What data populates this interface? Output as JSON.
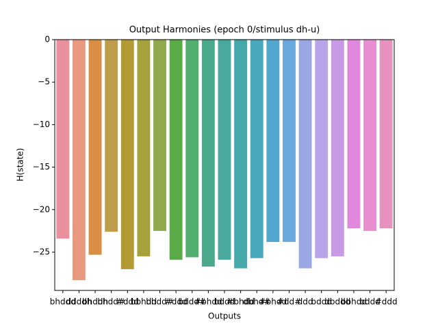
{
  "chart_data": {
    "type": "bar",
    "title": "Output Harmonies (epoch 0/stimulus dh-u)",
    "xlabel": "Outputs",
    "ylabel": "H(state)",
    "categories": [
      "bhddd",
      "ddddh",
      "bhddh",
      "bhdd#",
      "#ddd",
      "bbhdd",
      "bhdd#",
      "#ddd",
      "bddd#",
      "#bhdd",
      "bddd",
      "#bhdd",
      "dbhd#",
      "#bhdd",
      "#dd#",
      "ddd",
      "bddd",
      "dbddd",
      "bbhdd",
      "bddd",
      "#ddd"
    ],
    "values": [
      -23.4,
      -28.3,
      -25.3,
      -22.6,
      -27.0,
      -25.5,
      -22.5,
      -25.9,
      -25.6,
      -26.7,
      -25.9,
      -26.9,
      -25.7,
      -23.8,
      -23.8,
      -26.9,
      -25.7,
      -25.5,
      -22.2,
      -22.5,
      -22.2
    ],
    "colors": [
      "#e8919c",
      "#e99a7e",
      "#d98e45",
      "#c09c4d",
      "#b49a32",
      "#a6a13a",
      "#90a94c",
      "#5aaa46",
      "#52ae6f",
      "#4aab8c",
      "#48a99c",
      "#46a9a9",
      "#4aa8bc",
      "#53a6d0",
      "#6aa9de",
      "#9aa7e4",
      "#b9a4e8",
      "#c89ae5",
      "#df88dc",
      "#e88ed0",
      "#e692bc"
    ],
    "ylim": [
      -29.5,
      0
    ],
    "yticks": [
      {
        "value": 0,
        "label": "0"
      },
      {
        "value": -5,
        "label": "−5"
      },
      {
        "value": -10,
        "label": "−10"
      },
      {
        "value": -15,
        "label": "−15"
      },
      {
        "value": -20,
        "label": "−20"
      },
      {
        "value": -25,
        "label": "−25"
      }
    ]
  }
}
